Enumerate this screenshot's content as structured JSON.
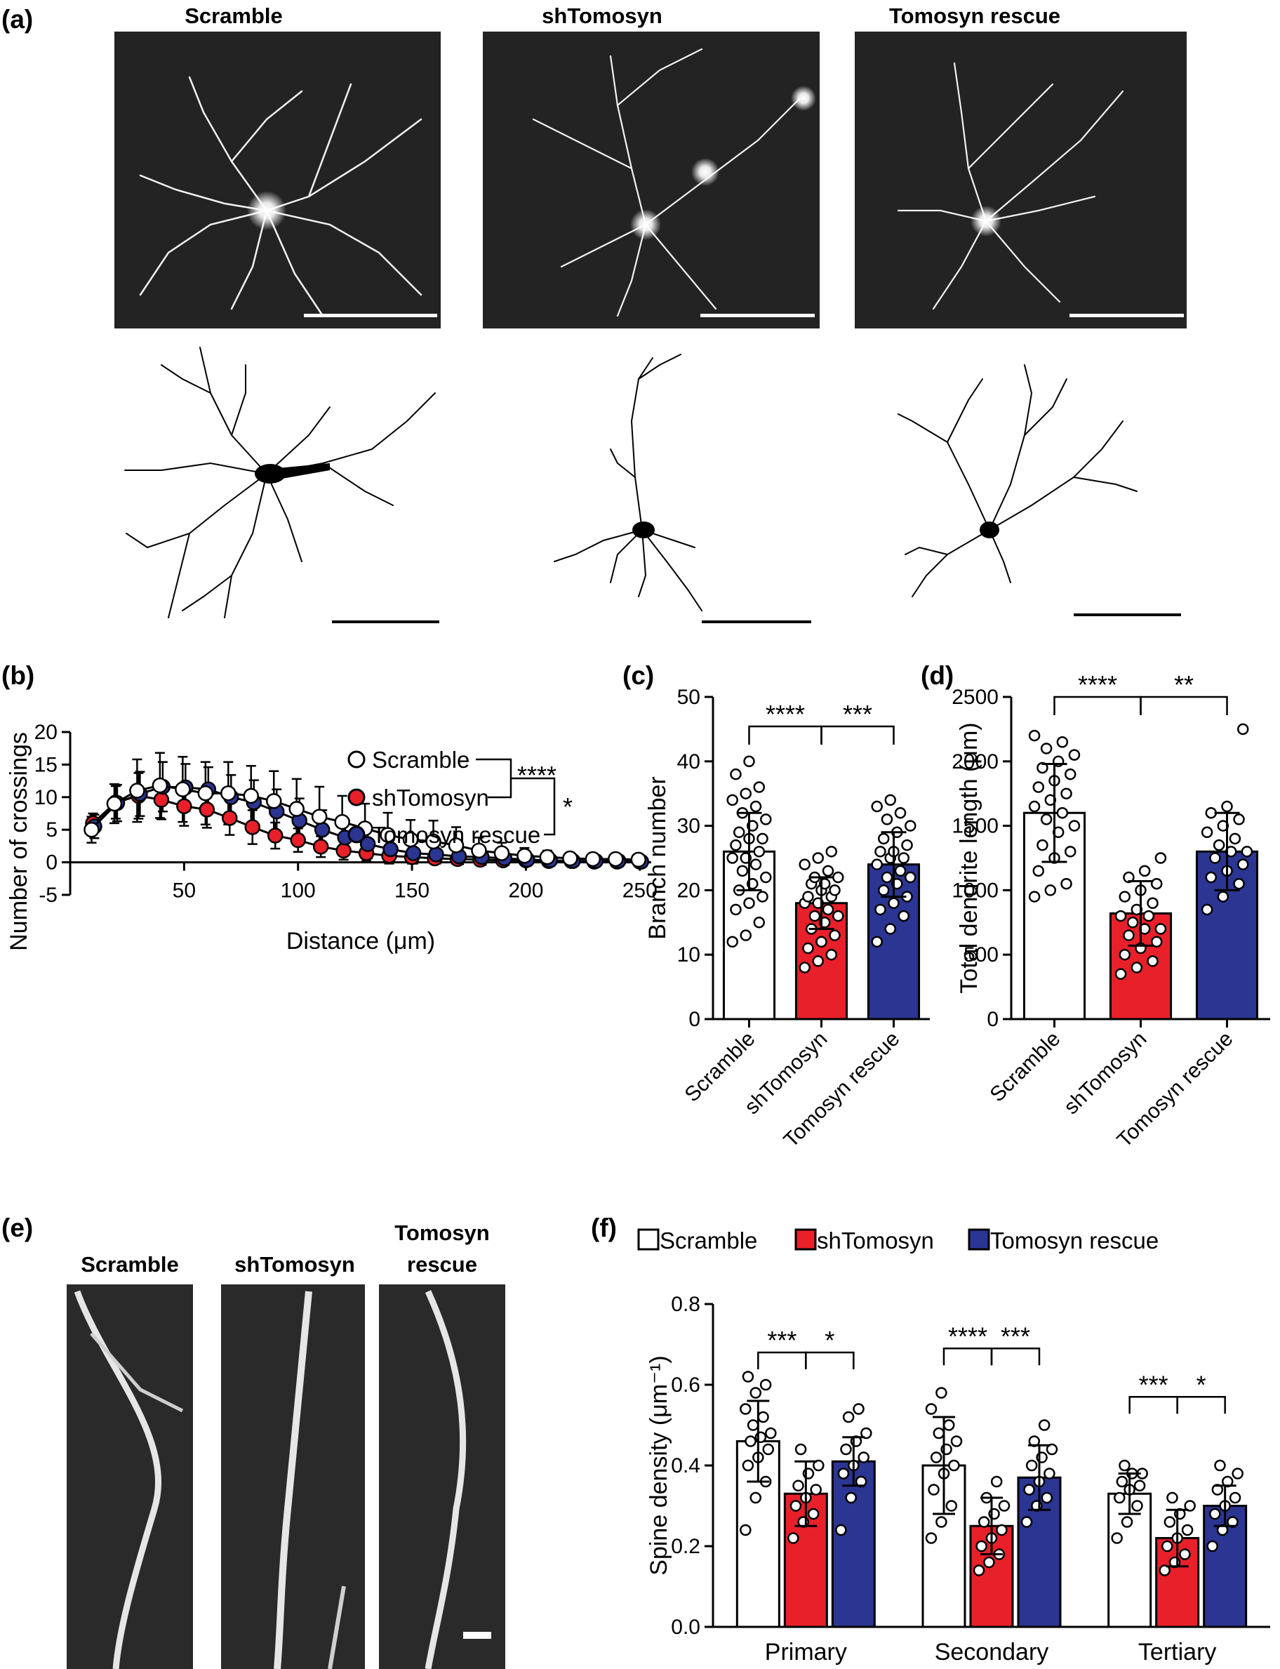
{
  "panels": {
    "a": {
      "label": "(a)",
      "conditions": [
        "Scramble",
        "shTomosyn",
        "Tomosyn rescue"
      ]
    },
    "b": {
      "label": "(b)",
      "legend": [
        "Scramble",
        "shTomosyn",
        "Tomosyn rescue"
      ],
      "significance": [
        "****",
        "*"
      ]
    },
    "c": {
      "label": "(c)",
      "significance": [
        "****",
        "***"
      ]
    },
    "d": {
      "label": "(d)",
      "significance": [
        "****",
        "**"
      ]
    },
    "e": {
      "label": "(e)",
      "conditions": [
        "Scramble",
        "shTomosyn",
        "Tomosyn\nrescue"
      ]
    },
    "f": {
      "label": "(f)",
      "legend": [
        "Scramble",
        "shTomosyn",
        "Tomosyn rescue"
      ],
      "significance": [
        [
          "***",
          "*"
        ],
        [
          "****",
          "***"
        ],
        [
          "***",
          "*"
        ]
      ]
    }
  },
  "colors": {
    "scramble": "#ffffff",
    "shTomosyn": "#e8202a",
    "rescue": "#2b3592",
    "micro": "#222222"
  },
  "chart_data": [
    {
      "id": "b",
      "type": "line",
      "xlabel": "Distance (μm)",
      "ylabel": "Number of crossings",
      "xlim": [
        0,
        255
      ],
      "ylim": [
        -5,
        20
      ],
      "xticks": [
        50,
        100,
        150,
        200,
        250
      ],
      "yticks": [
        -5,
        0,
        5,
        10,
        15,
        20
      ],
      "x": [
        10,
        20,
        30,
        40,
        50,
        60,
        70,
        80,
        90,
        100,
        110,
        120,
        130,
        140,
        150,
        160,
        170,
        180,
        190,
        200,
        210,
        220,
        230,
        240,
        250
      ],
      "series": [
        {
          "name": "Scramble",
          "values": [
            5.0,
            9.0,
            11.0,
            11.8,
            11.2,
            10.6,
            10.6,
            10.2,
            9.4,
            8.2,
            7.0,
            6.2,
            5.2,
            4.2,
            3.5,
            3.2,
            2.6,
            1.8,
            1.4,
            1.0,
            0.8,
            0.6,
            0.5,
            0.5,
            0.4
          ],
          "err": [
            2.0,
            3.0,
            4.8,
            5.0,
            5.0,
            4.8,
            4.8,
            4.6,
            4.6,
            4.6,
            4.6,
            4.0,
            3.8,
            3.4,
            3.0,
            3.2,
            2.8,
            2.0,
            1.6,
            1.2,
            1.0,
            0.8,
            0.6,
            0.6,
            0.5
          ]
        },
        {
          "name": "shTomosyn",
          "values": [
            6.0,
            9.2,
            10.2,
            9.6,
            8.6,
            8.1,
            6.8,
            5.4,
            4.1,
            3.4,
            2.4,
            1.8,
            1.4,
            1.0,
            0.8,
            0.6,
            0.5,
            0.4,
            0.3,
            0.3,
            0.2,
            0.2,
            0.1,
            0.1,
            0.1
          ],
          "err": [
            1.5,
            2.5,
            3.5,
            3.0,
            3.0,
            2.8,
            2.6,
            2.6,
            2.0,
            1.8,
            1.6,
            1.4,
            1.2,
            1.2,
            1.0,
            0.8,
            0.8,
            0.6,
            0.5,
            0.5,
            0.4,
            0.3,
            0.3,
            0.2,
            0.2
          ]
        },
        {
          "name": "Tomosyn rescue",
          "values": [
            5.5,
            9.1,
            10.5,
            11.6,
            11.5,
            11.2,
            10.0,
            9.2,
            7.8,
            6.4,
            5.0,
            3.8,
            2.8,
            2.0,
            1.4,
            1.2,
            0.9,
            0.8,
            0.6,
            0.4,
            0.3,
            0.2,
            0.2,
            0.2,
            0.1
          ],
          "err": [
            1.8,
            2.8,
            3.4,
            3.8,
            3.6,
            3.4,
            3.4,
            3.4,
            3.4,
            3.4,
            3.0,
            2.6,
            2.2,
            2.0,
            1.6,
            1.4,
            1.2,
            1.2,
            1.0,
            0.8,
            0.6,
            0.5,
            0.4,
            0.4,
            0.3
          ]
        }
      ]
    },
    {
      "id": "c",
      "type": "bar",
      "ylabel": "Branch number",
      "ylim": [
        0,
        50
      ],
      "yticks": [
        0,
        10,
        20,
        30,
        40,
        50
      ],
      "categories": [
        "Scramble",
        "shTomosyn",
        "Tomosyn rescue"
      ],
      "values": [
        26,
        18,
        24
      ],
      "err": [
        6,
        4,
        5
      ],
      "points": [
        [
          12,
          13,
          15,
          17,
          18,
          19,
          20,
          21,
          22,
          23,
          24,
          25,
          25,
          26,
          27,
          28,
          28,
          29,
          30,
          31,
          32,
          33,
          34,
          35,
          36,
          38,
          40
        ],
        [
          8,
          9,
          10,
          11,
          12,
          13,
          14,
          15,
          16,
          16,
          17,
          18,
          18,
          19,
          19,
          20,
          20,
          21,
          21,
          22,
          22,
          23,
          24,
          25,
          26
        ],
        [
          12,
          14,
          16,
          17,
          18,
          19,
          20,
          21,
          22,
          22,
          23,
          24,
          25,
          25,
          26,
          26,
          27,
          28,
          29,
          30,
          31,
          32,
          33,
          34
        ]
      ]
    },
    {
      "id": "d",
      "type": "bar",
      "ylabel": "Total dendrite length (μm)",
      "ylim": [
        0,
        2500
      ],
      "yticks": [
        0,
        500,
        1000,
        1500,
        2000,
        2500
      ],
      "categories": [
        "Scramble",
        "shTomosyn",
        "Tomosyn rescue"
      ],
      "values": [
        1600,
        820,
        1300
      ],
      "err": [
        380,
        250,
        300
      ],
      "points": [
        [
          950,
          1000,
          1050,
          1150,
          1250,
          1300,
          1350,
          1450,
          1500,
          1550,
          1600,
          1650,
          1700,
          1750,
          1800,
          1850,
          1900,
          1950,
          2000,
          2050,
          2100,
          2150,
          2200
        ],
        [
          350,
          400,
          450,
          500,
          550,
          600,
          650,
          700,
          700,
          750,
          800,
          800,
          850,
          900,
          950,
          1000,
          1050,
          1100,
          1150,
          1250
        ],
        [
          850,
          950,
          1050,
          1100,
          1150,
          1200,
          1250,
          1300,
          1300,
          1350,
          1400,
          1450,
          1500,
          1550,
          1600,
          1650,
          2250
        ]
      ]
    },
    {
      "id": "f",
      "type": "bar",
      "ylabel": "Spine density (μm⁻¹)",
      "ylim": [
        0,
        0.8
      ],
      "yticks": [
        0.0,
        0.2,
        0.4,
        0.6,
        0.8
      ],
      "categories": [
        "Primary",
        "Secondary",
        "Tertiary"
      ],
      "series": [
        {
          "name": "Scramble",
          "values": [
            0.46,
            0.4,
            0.33
          ],
          "err": [
            0.1,
            0.12,
            0.05
          ],
          "points": [
            [
              0.24,
              0.32,
              0.36,
              0.4,
              0.42,
              0.44,
              0.46,
              0.47,
              0.48,
              0.5,
              0.52,
              0.54,
              0.58,
              0.6,
              0.62
            ],
            [
              0.22,
              0.26,
              0.3,
              0.34,
              0.38,
              0.4,
              0.42,
              0.44,
              0.46,
              0.48,
              0.5,
              0.54,
              0.58
            ],
            [
              0.22,
              0.26,
              0.3,
              0.32,
              0.34,
              0.35,
              0.36,
              0.38,
              0.38,
              0.4
            ]
          ]
        },
        {
          "name": "shTomosyn",
          "values": [
            0.33,
            0.25,
            0.22
          ],
          "err": [
            0.08,
            0.07,
            0.07
          ],
          "points": [
            [
              0.22,
              0.26,
              0.28,
              0.3,
              0.32,
              0.34,
              0.35,
              0.38,
              0.4,
              0.44
            ],
            [
              0.14,
              0.16,
              0.18,
              0.2,
              0.22,
              0.24,
              0.26,
              0.28,
              0.3,
              0.32,
              0.36
            ],
            [
              0.14,
              0.16,
              0.18,
              0.2,
              0.22,
              0.24,
              0.26,
              0.28,
              0.3,
              0.32
            ]
          ]
        },
        {
          "name": "Tomosyn rescue",
          "values": [
            0.41,
            0.37,
            0.3
          ],
          "err": [
            0.06,
            0.08,
            0.05
          ],
          "points": [
            [
              0.24,
              0.32,
              0.36,
              0.38,
              0.4,
              0.42,
              0.44,
              0.46,
              0.48,
              0.52,
              0.54
            ],
            [
              0.26,
              0.3,
              0.32,
              0.34,
              0.36,
              0.38,
              0.4,
              0.42,
              0.44,
              0.46,
              0.5
            ],
            [
              0.2,
              0.24,
              0.26,
              0.28,
              0.3,
              0.32,
              0.34,
              0.36,
              0.38,
              0.4
            ]
          ]
        }
      ]
    }
  ]
}
